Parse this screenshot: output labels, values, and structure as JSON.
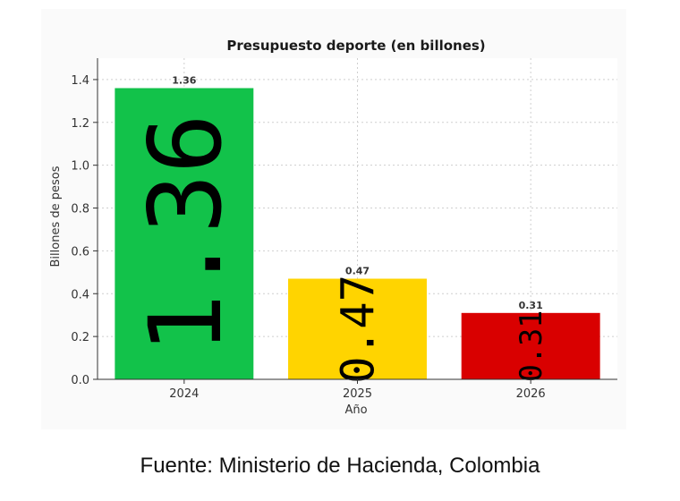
{
  "chart_data": {
    "type": "bar",
    "title": "Presupuesto deporte (en billones)",
    "xlabel": "Año",
    "ylabel": "Billones de pesos",
    "categories": [
      "2024",
      "2025",
      "2026"
    ],
    "values": [
      1.36,
      0.47,
      0.31
    ],
    "data_labels": [
      "1.36",
      "0.47",
      "0.31"
    ],
    "bar_colors": [
      "#12c24a",
      "#ffd400",
      "#d90000"
    ],
    "ylim": [
      0,
      1.5
    ],
    "yticks": [
      "0.0",
      "0.2",
      "0.4",
      "0.6",
      "0.8",
      "1.0",
      "1.2",
      "1.4"
    ],
    "grid": true,
    "legend": "none"
  },
  "source": "Fuente: Ministerio de Hacienda, Colombia"
}
